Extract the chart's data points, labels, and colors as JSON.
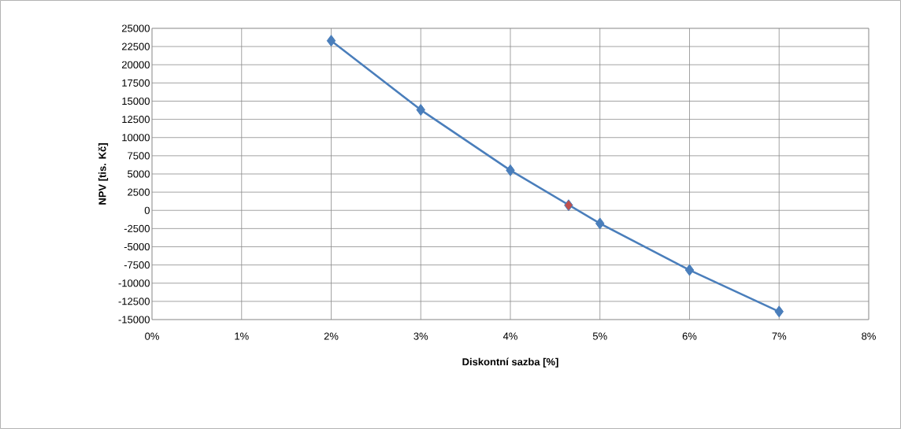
{
  "chart_data": {
    "type": "line",
    "xlabel": "Diskontní sazba [%]",
    "ylabel": "NPV [tis. Kč]",
    "xlim": [
      0,
      8
    ],
    "xticks": [
      {
        "value": 0,
        "label": "0%"
      },
      {
        "value": 1,
        "label": "1%"
      },
      {
        "value": 2,
        "label": "2%"
      },
      {
        "value": 3,
        "label": "3%"
      },
      {
        "value": 4,
        "label": "4%"
      },
      {
        "value": 5,
        "label": "5%"
      },
      {
        "value": 6,
        "label": "6%"
      },
      {
        "value": 7,
        "label": "7%"
      },
      {
        "value": 8,
        "label": "8%"
      }
    ],
    "ylim": [
      -15000,
      25000
    ],
    "yticks": [
      -15000,
      -12500,
      -10000,
      -7500,
      -5000,
      -2500,
      0,
      2500,
      5000,
      7500,
      10000,
      12500,
      15000,
      17500,
      20000,
      22500,
      25000
    ],
    "grid": true,
    "series": [
      {
        "color": "#4a7ebb",
        "marker": "diamond",
        "line_style": "solid",
        "x": [
          2,
          3,
          4,
          5,
          6,
          7
        ],
        "values": [
          23300,
          13800,
          5500,
          -1800,
          -8200,
          -13900
        ]
      },
      {
        "type": "scatter",
        "color": "#c0504d",
        "marker": "diamond",
        "x": [
          4.65
        ],
        "values": [
          700
        ]
      }
    ]
  }
}
